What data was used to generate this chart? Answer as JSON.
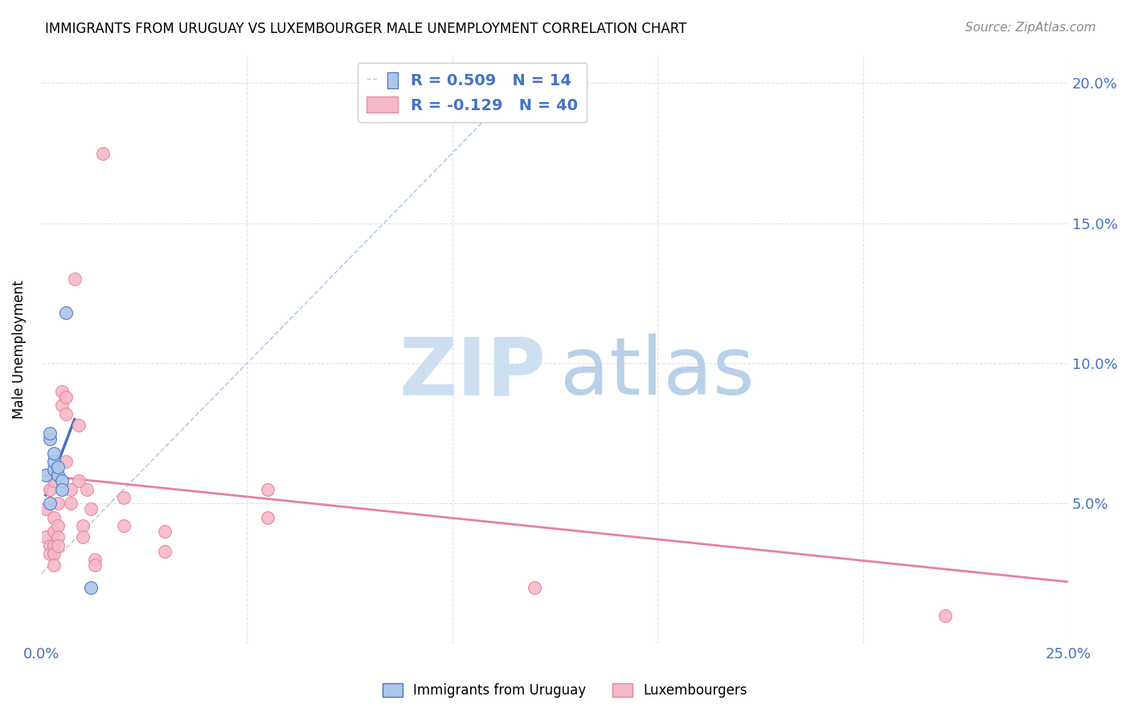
{
  "title": "IMMIGRANTS FROM URUGUAY VS LUXEMBOURGER MALE UNEMPLOYMENT CORRELATION CHART",
  "source": "Source: ZipAtlas.com",
  "ylabel": "Male Unemployment",
  "xlim": [
    0.0,
    0.25
  ],
  "ylim": [
    0.0,
    0.21
  ],
  "blue_scatter": [
    [
      0.001,
      0.06
    ],
    [
      0.002,
      0.073
    ],
    [
      0.002,
      0.075
    ],
    [
      0.003,
      0.062
    ],
    [
      0.003,
      0.065
    ],
    [
      0.003,
      0.068
    ],
    [
      0.004,
      0.06
    ],
    [
      0.004,
      0.063
    ],
    [
      0.005,
      0.058
    ],
    [
      0.005,
      0.055
    ],
    [
      0.006,
      0.118
    ],
    [
      0.012,
      0.02
    ],
    [
      0.002,
      0.05
    ]
  ],
  "pink_scatter": [
    [
      0.001,
      0.048
    ],
    [
      0.001,
      0.038
    ],
    [
      0.002,
      0.055
    ],
    [
      0.002,
      0.035
    ],
    [
      0.002,
      0.032
    ],
    [
      0.003,
      0.058
    ],
    [
      0.003,
      0.045
    ],
    [
      0.003,
      0.04
    ],
    [
      0.003,
      0.035
    ],
    [
      0.003,
      0.032
    ],
    [
      0.003,
      0.028
    ],
    [
      0.004,
      0.05
    ],
    [
      0.004,
      0.042
    ],
    [
      0.004,
      0.038
    ],
    [
      0.004,
      0.035
    ],
    [
      0.005,
      0.09
    ],
    [
      0.005,
      0.085
    ],
    [
      0.006,
      0.088
    ],
    [
      0.006,
      0.082
    ],
    [
      0.006,
      0.065
    ],
    [
      0.007,
      0.055
    ],
    [
      0.007,
      0.05
    ],
    [
      0.008,
      0.13
    ],
    [
      0.009,
      0.078
    ],
    [
      0.009,
      0.058
    ],
    [
      0.01,
      0.042
    ],
    [
      0.01,
      0.038
    ],
    [
      0.011,
      0.055
    ],
    [
      0.012,
      0.048
    ],
    [
      0.013,
      0.03
    ],
    [
      0.013,
      0.028
    ],
    [
      0.015,
      0.175
    ],
    [
      0.02,
      0.052
    ],
    [
      0.02,
      0.042
    ],
    [
      0.03,
      0.04
    ],
    [
      0.03,
      0.033
    ],
    [
      0.055,
      0.055
    ],
    [
      0.055,
      0.045
    ],
    [
      0.12,
      0.02
    ],
    [
      0.22,
      0.01
    ]
  ],
  "blue_line_solid": [
    [
      0.001,
      0.053
    ],
    [
      0.008,
      0.08
    ]
  ],
  "blue_line_dashed": [
    [
      0.0,
      0.025
    ],
    [
      0.12,
      0.205
    ]
  ],
  "pink_line": [
    [
      0.0,
      0.06
    ],
    [
      0.25,
      0.022
    ]
  ],
  "blue_scatter_color": "#aec6e8",
  "blue_edge_color": "#4472c4",
  "pink_scatter_color": "#f4b8c8",
  "pink_edge_color": "#e8829a",
  "blue_line_color": "#4472c4",
  "blue_dashed_color": "#b8cce4",
  "pink_line_color": "#e8829a",
  "grid_color": "#dde3ed",
  "watermark_zip_color": "#ccdff0",
  "watermark_atlas_color": "#b8d0e8"
}
